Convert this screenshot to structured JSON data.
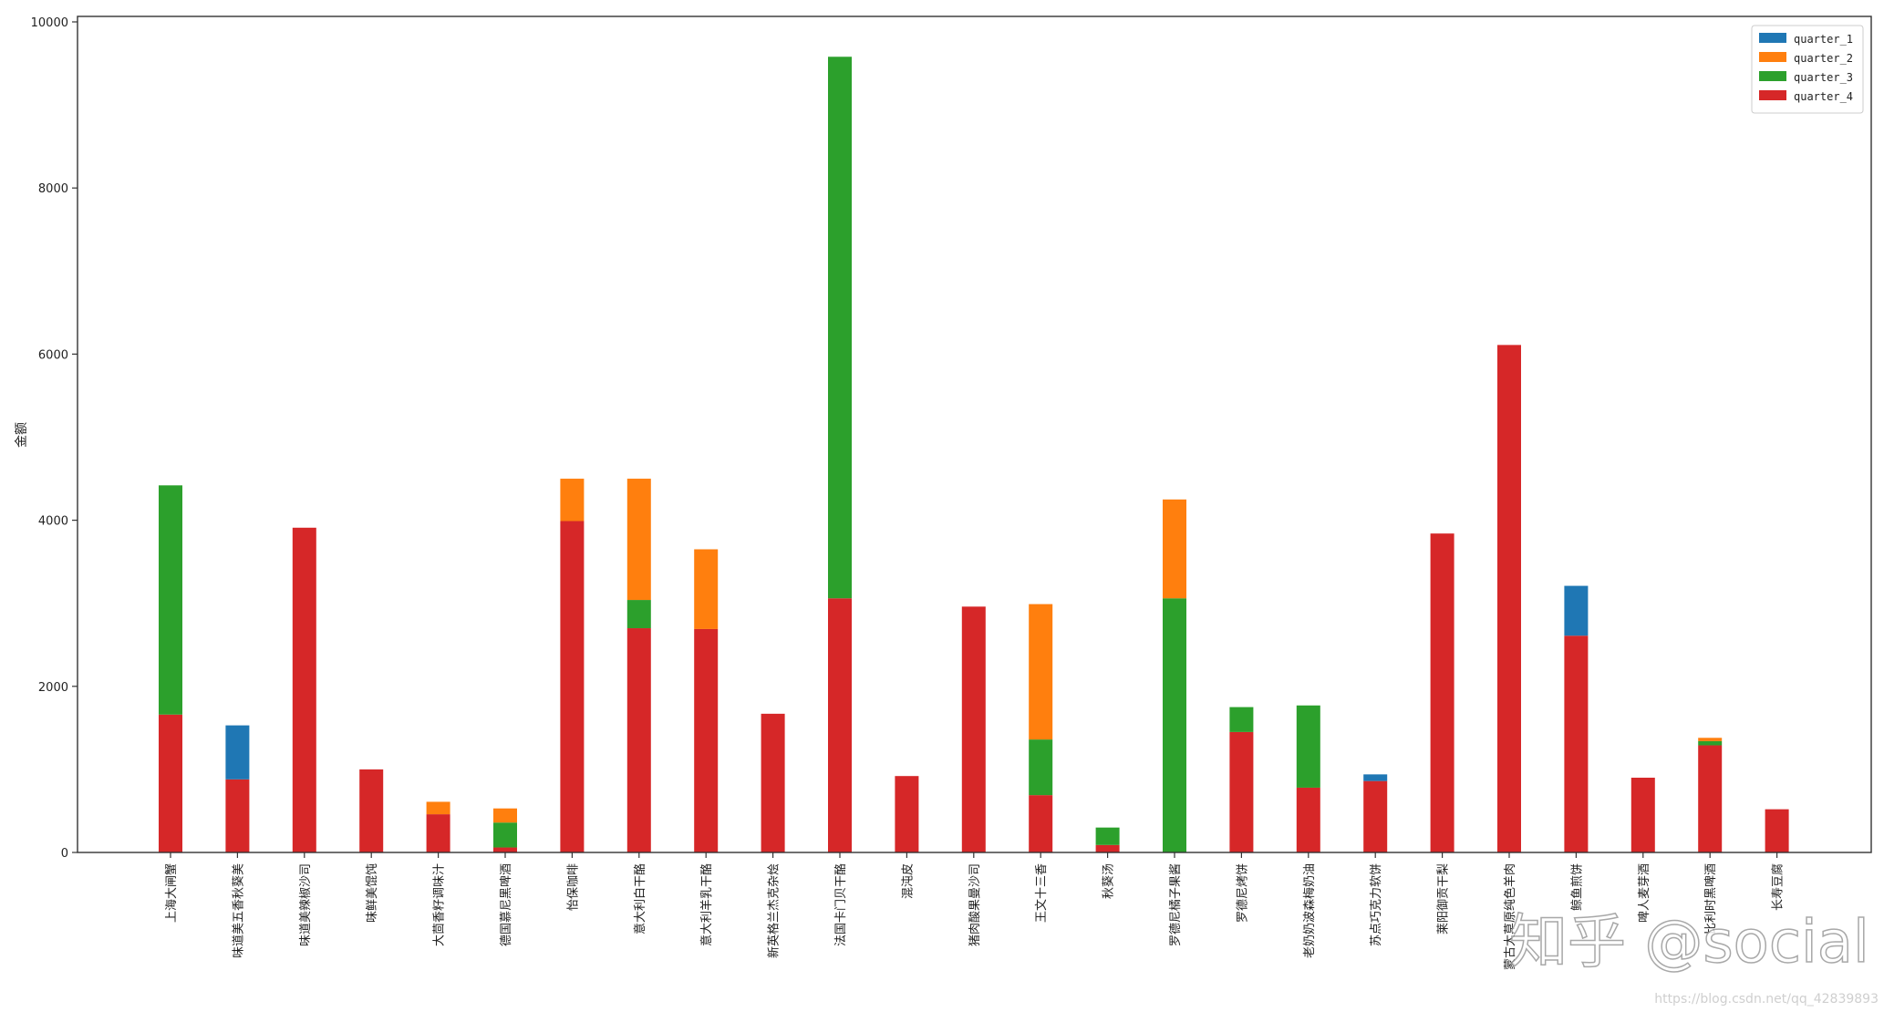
{
  "chart_data": {
    "type": "bar",
    "stacked": true,
    "ylabel": "金额",
    "ylim": [
      0,
      10000
    ],
    "yticks": [
      "0",
      "2000",
      "4000",
      "6000",
      "8000",
      "10000"
    ],
    "legend_position": "top-right",
    "grid": false,
    "categories": [
      "上海大闸蟹",
      "味道美五香秋葵美",
      "味道美辣椒沙司",
      "味鲜美馄饨",
      "大茴香籽调味汁",
      "德国慕尼黑啤酒",
      "怡保咖啡",
      "意大利白干酪",
      "意大利羊乳干酪",
      "新英格兰杰克杂烩",
      "法国卡门贝干酪",
      "混沌皮",
      "猪肉酸果曼沙司",
      "王文十三香",
      "秋葵汤",
      "罗德尼橘子果酱",
      "罗德尼烤饼",
      "老奶奶波森梅奶油",
      "苏点巧克力软饼",
      "莱阳御贡干梨",
      "蒙古大草原纯色羊肉",
      "鲸鱼煎饼",
      "啤人麦芽酒",
      "比利时黑啤酒",
      "长寿豆腐"
    ],
    "series": [
      {
        "name": "quarter_1",
        "color": "#1f77b4",
        "values": [
          0,
          650,
          0,
          0,
          0,
          0,
          0,
          0,
          0,
          0,
          0,
          0,
          0,
          0,
          0,
          0,
          0,
          0,
          80,
          0,
          0,
          600,
          0,
          0,
          0
        ]
      },
      {
        "name": "quarter_2",
        "color": "#ff7f0e",
        "values": [
          0,
          0,
          0,
          0,
          150,
          170,
          510,
          1460,
          960,
          0,
          0,
          0,
          0,
          1630,
          0,
          1190,
          0,
          0,
          0,
          0,
          0,
          0,
          0,
          40,
          0
        ]
      },
      {
        "name": "quarter_3",
        "color": "#2ca02c",
        "values": [
          2760,
          0,
          0,
          0,
          0,
          300,
          0,
          340,
          0,
          0,
          6520,
          0,
          0,
          670,
          210,
          3060,
          300,
          990,
          0,
          0,
          0,
          0,
          0,
          50,
          0
        ]
      },
      {
        "name": "quarter_4",
        "color": "#d62728",
        "values": [
          1660,
          880,
          3910,
          1000,
          460,
          60,
          3990,
          2700,
          2690,
          1670,
          3060,
          920,
          2960,
          690,
          90,
          0,
          1450,
          780,
          860,
          3840,
          6110,
          2610,
          900,
          1290,
          520
        ]
      }
    ]
  },
  "watermark": {
    "text": "知乎 @social",
    "url": "https://blog.csdn.net/qq_42839893"
  }
}
